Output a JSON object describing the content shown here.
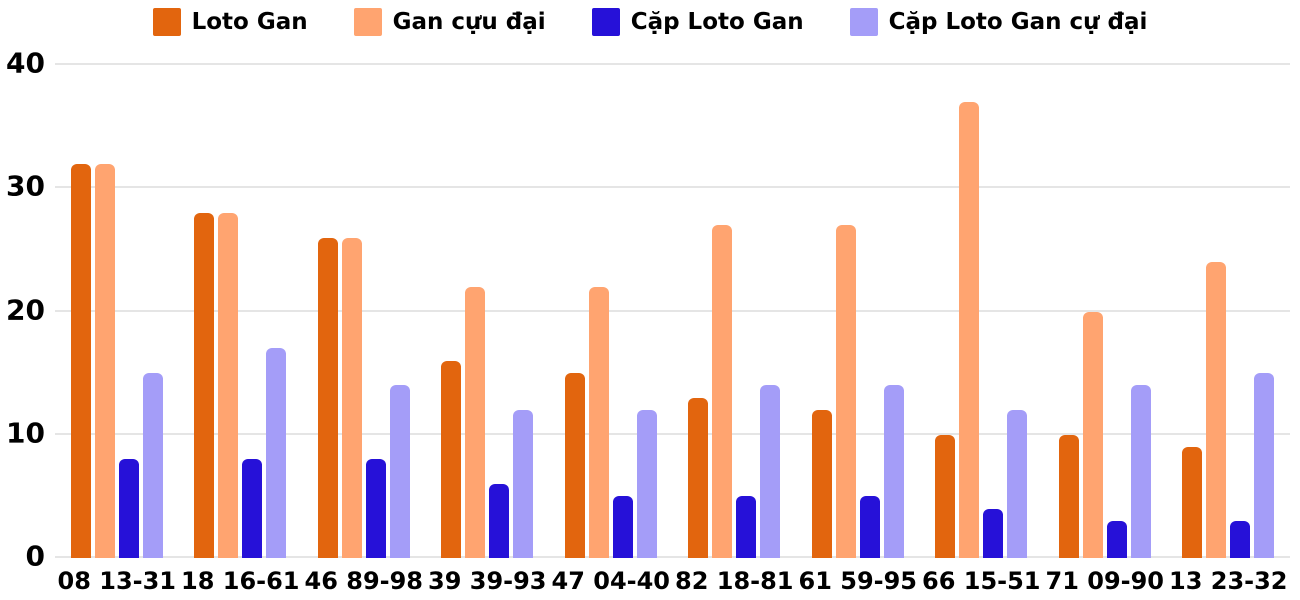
{
  "chart_data": {
    "type": "bar",
    "title": "",
    "categories": [
      "08 13-31",
      "18 16-61",
      "46 89-98",
      "39 39-93",
      "47 04-40",
      "82 18-81",
      "61 59-95",
      "66 15-51",
      "71 09-90",
      "13 23-32"
    ],
    "series": [
      {
        "name": "Loto Gan",
        "color": "#e2650e",
        "values": [
          32,
          28,
          26,
          16,
          15,
          13,
          12,
          10,
          10,
          9
        ]
      },
      {
        "name": "Gan cựu đại",
        "color": "#ffa470",
        "values": [
          32,
          28,
          26,
          22,
          22,
          27,
          27,
          37,
          20,
          24
        ]
      },
      {
        "name": "Cặp Loto Gan",
        "color": "#2611d8",
        "values": [
          8,
          8,
          8,
          6,
          5,
          5,
          5,
          4,
          3,
          3
        ]
      },
      {
        "name": "Cặp Loto Gan cự đại",
        "color": "#a49df8",
        "values": [
          15,
          17,
          14,
          12,
          12,
          14,
          14,
          12,
          14,
          15
        ]
      }
    ],
    "xlabel": "",
    "ylabel": "",
    "ylim": [
      0,
      40
    ],
    "yticks": [
      0,
      10,
      20,
      30,
      40
    ],
    "grid": true,
    "legend_position": "top",
    "colors": {
      "gridline": "#e5e5e5",
      "text": "#000000",
      "background": "#ffffff"
    }
  }
}
